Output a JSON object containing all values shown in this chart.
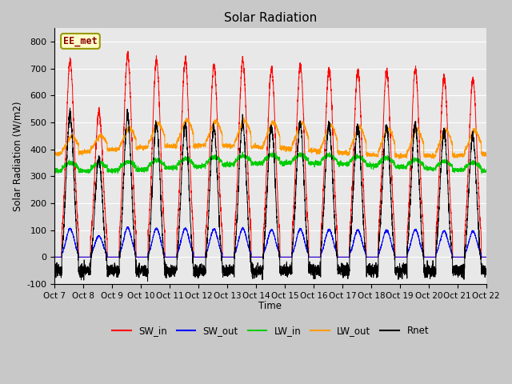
{
  "title": "Solar Radiation",
  "ylabel": "Solar Radiation (W/m2)",
  "xlabel": "Time",
  "ylim": [
    -100,
    850
  ],
  "yticks": [
    -100,
    0,
    100,
    200,
    300,
    400,
    500,
    600,
    700,
    800
  ],
  "colors": {
    "SW_in": "#ff0000",
    "SW_out": "#0000ff",
    "LW_in": "#00cc00",
    "LW_out": "#ff9900",
    "Rnet": "#000000"
  },
  "station_label": "EE_met",
  "n_days": 15,
  "x_tick_labels": [
    "Oct 7",
    "Oct 8",
    "Oct 9",
    "Oct 10",
    "Oct 11",
    "Oct 12",
    "Oct 13",
    "Oct 14",
    "Oct 15",
    "Oct 16",
    "Oct 17",
    "Oct 18",
    "Oct 19",
    "Oct 20",
    "Oct 21",
    "Oct 22"
  ],
  "figsize": [
    6.4,
    4.8
  ],
  "dpi": 100
}
